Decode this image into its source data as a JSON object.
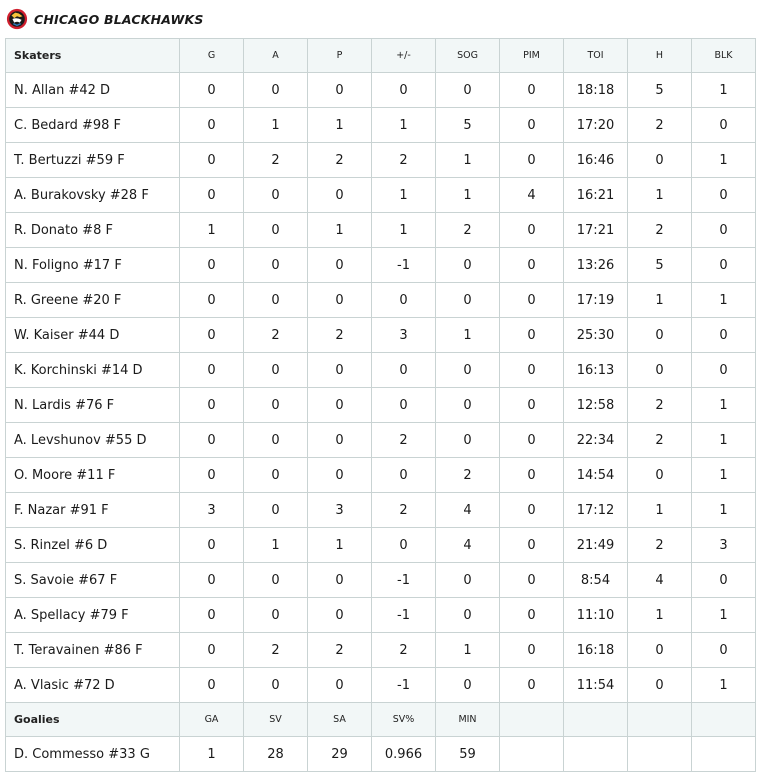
{
  "team": {
    "name": "CHICAGO BLACKHAWKS",
    "logo_icon": "blackhawks-logo-icon"
  },
  "skaters": {
    "columns": [
      "Skaters",
      "G",
      "A",
      "P",
      "+/-",
      "SOG",
      "PIM",
      "TOI",
      "H",
      "BLK"
    ],
    "rows": [
      [
        "N. Allan #42 D",
        "0",
        "0",
        "0",
        "0",
        "0",
        "0",
        "18:18",
        "5",
        "1"
      ],
      [
        "C. Bedard #98 F",
        "0",
        "1",
        "1",
        "1",
        "5",
        "0",
        "17:20",
        "2",
        "0"
      ],
      [
        "T. Bertuzzi #59 F",
        "0",
        "2",
        "2",
        "2",
        "1",
        "0",
        "16:46",
        "0",
        "1"
      ],
      [
        "A. Burakovsky #28 F",
        "0",
        "0",
        "0",
        "1",
        "1",
        "4",
        "16:21",
        "1",
        "0"
      ],
      [
        "R. Donato #8 F",
        "1",
        "0",
        "1",
        "1",
        "2",
        "0",
        "17:21",
        "2",
        "0"
      ],
      [
        "N. Foligno #17 F",
        "0",
        "0",
        "0",
        "-1",
        "0",
        "0",
        "13:26",
        "5",
        "0"
      ],
      [
        "R. Greene #20 F",
        "0",
        "0",
        "0",
        "0",
        "0",
        "0",
        "17:19",
        "1",
        "1"
      ],
      [
        "W. Kaiser #44 D",
        "0",
        "2",
        "2",
        "3",
        "1",
        "0",
        "25:30",
        "0",
        "0"
      ],
      [
        "K. Korchinski #14 D",
        "0",
        "0",
        "0",
        "0",
        "0",
        "0",
        "16:13",
        "0",
        "0"
      ],
      [
        "N. Lardis #76 F",
        "0",
        "0",
        "0",
        "0",
        "0",
        "0",
        "12:58",
        "2",
        "1"
      ],
      [
        "A. Levshunov #55 D",
        "0",
        "0",
        "0",
        "2",
        "0",
        "0",
        "22:34",
        "2",
        "1"
      ],
      [
        "O. Moore #11 F",
        "0",
        "0",
        "0",
        "0",
        "2",
        "0",
        "14:54",
        "0",
        "1"
      ],
      [
        "F. Nazar #91 F",
        "3",
        "0",
        "3",
        "2",
        "4",
        "0",
        "17:12",
        "1",
        "1"
      ],
      [
        "S. Rinzel #6 D",
        "0",
        "1",
        "1",
        "0",
        "4",
        "0",
        "21:49",
        "2",
        "3"
      ],
      [
        "S. Savoie #67 F",
        "0",
        "0",
        "0",
        "-1",
        "0",
        "0",
        "8:54",
        "4",
        "0"
      ],
      [
        "A. Spellacy #79 F",
        "0",
        "0",
        "0",
        "-1",
        "0",
        "0",
        "11:10",
        "1",
        "1"
      ],
      [
        "T. Teravainen #86 F",
        "0",
        "2",
        "2",
        "2",
        "1",
        "0",
        "16:18",
        "0",
        "0"
      ],
      [
        "A. Vlasic #72 D",
        "0",
        "0",
        "0",
        "-1",
        "0",
        "0",
        "11:54",
        "0",
        "1"
      ]
    ]
  },
  "goalies": {
    "columns": [
      "Goalies",
      "GA",
      "SV",
      "SA",
      "SV%",
      "MIN",
      "",
      "",
      "",
      ""
    ],
    "rows": [
      [
        "D. Commesso #33 G",
        "1",
        "28",
        "29",
        "0.966",
        "59",
        "",
        "",
        "",
        ""
      ]
    ]
  },
  "colors": {
    "header_bg": "#f2f7f7",
    "border": "#c9d3d3",
    "logo_red": "#cf1f2e"
  }
}
